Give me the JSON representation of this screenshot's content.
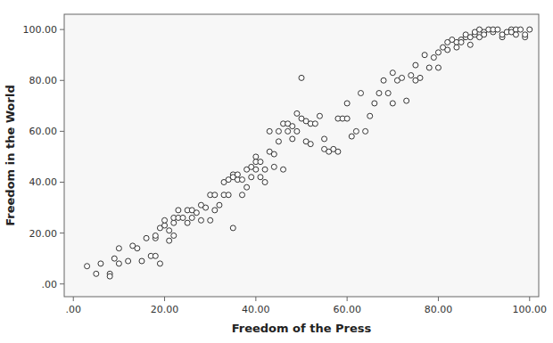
{
  "chart_data": {
    "type": "scatter",
    "xlabel": "Freedom of the Press",
    "ylabel": "Freedom in the World",
    "xlim": [
      -2,
      102
    ],
    "ylim": [
      -5,
      106
    ],
    "xticks": [
      {
        "value": 0,
        "label": ".00"
      },
      {
        "value": 20,
        "label": "20.00"
      },
      {
        "value": 40,
        "label": "40.00"
      },
      {
        "value": 60,
        "label": "60.00"
      },
      {
        "value": 80,
        "label": "80.00"
      },
      {
        "value": 100,
        "label": "100.00"
      }
    ],
    "yticks": [
      {
        "value": 0,
        "label": ".00"
      },
      {
        "value": 20,
        "label": "20.00"
      },
      {
        "value": 40,
        "label": "40.00"
      },
      {
        "value": 60,
        "label": "60.00"
      },
      {
        "value": 80,
        "label": "80.00"
      },
      {
        "value": 100,
        "label": "100.00"
      }
    ],
    "grid": false,
    "color": "#333333",
    "marker": "open-circle",
    "x": [
      3,
      5,
      6,
      8,
      8,
      9,
      10,
      10,
      12,
      13,
      14,
      15,
      16,
      17,
      18,
      18,
      18,
      19,
      19,
      20,
      20,
      21,
      21,
      22,
      22,
      22,
      23,
      23,
      24,
      25,
      25,
      26,
      26,
      27,
      28,
      28,
      29,
      30,
      30,
      31,
      31,
      32,
      33,
      33,
      34,
      34,
      35,
      35,
      35,
      36,
      36,
      37,
      37,
      38,
      38,
      39,
      39,
      40,
      40,
      40,
      41,
      41,
      42,
      42,
      43,
      43,
      44,
      44,
      45,
      45,
      46,
      46,
      47,
      47,
      48,
      48,
      49,
      49,
      50,
      50,
      51,
      51,
      52,
      52,
      53,
      54,
      55,
      55,
      56,
      57,
      58,
      58,
      59,
      60,
      60,
      61,
      62,
      63,
      64,
      65,
      66,
      67,
      68,
      69,
      70,
      70,
      71,
      72,
      73,
      74,
      75,
      75,
      76,
      77,
      78,
      79,
      80,
      80,
      81,
      82,
      82,
      83,
      84,
      84,
      85,
      85,
      86,
      86,
      87,
      87,
      88,
      88,
      89,
      89,
      90,
      90,
      91,
      92,
      92,
      93,
      94,
      94,
      95,
      96,
      96,
      97,
      97,
      98,
      99,
      99,
      100
    ],
    "values": [
      7,
      4,
      8,
      4,
      3,
      10,
      14,
      8,
      9,
      15,
      14,
      9,
      18,
      11,
      18,
      19,
      11,
      8,
      22,
      23,
      25,
      21,
      17,
      24,
      26,
      19,
      29,
      26,
      26,
      24,
      29,
      26,
      29,
      28,
      25,
      31,
      30,
      25,
      35,
      35,
      29,
      31,
      35,
      40,
      35,
      41,
      43,
      42,
      22,
      41,
      43,
      41,
      35,
      38,
      45,
      46,
      42,
      45,
      50,
      48,
      42,
      48,
      40,
      45,
      52,
      60,
      51,
      46,
      56,
      60,
      63,
      45,
      60,
      63,
      57,
      62,
      67,
      60,
      65,
      81,
      56,
      64,
      55,
      63,
      63,
      66,
      53,
      57,
      52,
      53,
      65,
      52,
      65,
      65,
      71,
      58,
      60,
      75,
      60,
      66,
      71,
      75,
      80,
      75,
      83,
      71,
      80,
      81,
      72,
      82,
      86,
      80,
      81,
      90,
      85,
      89,
      91,
      85,
      93,
      92,
      95,
      96,
      95,
      93,
      96,
      95,
      97,
      98,
      94,
      97,
      98,
      99,
      97,
      100,
      99,
      98,
      100,
      99,
      100,
      100,
      97,
      98,
      99,
      100,
      99,
      100,
      98,
      100,
      97,
      98,
      100
    ]
  }
}
